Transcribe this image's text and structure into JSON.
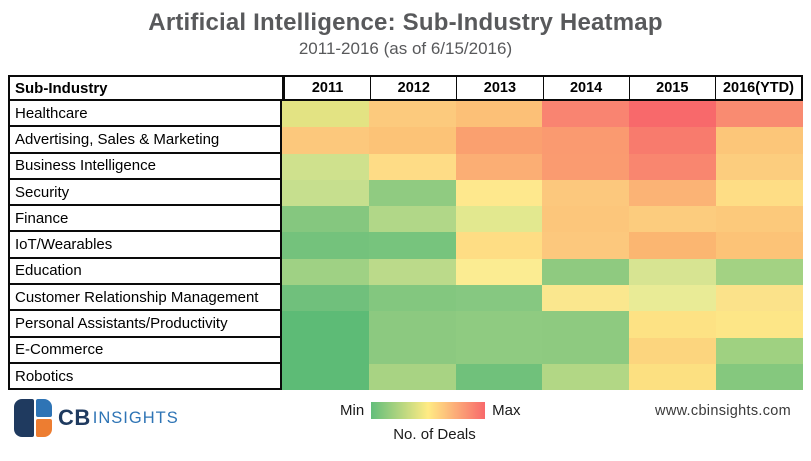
{
  "header": {
    "title": "Artificial Intelligence: Sub-Industry Heatmap",
    "subtitle": "2011-2016 (as of 6/15/2016)"
  },
  "chart_data": {
    "type": "heatmap",
    "title": "Artificial Intelligence: Sub-Industry Heatmap",
    "subtitle": "2011-2016 (as of 6/15/2016)",
    "corner_label": "Sub-Industry",
    "columns": [
      "2011",
      "2012",
      "2013",
      "2014",
      "2015",
      "2016(YTD)"
    ],
    "rows": [
      "Healthcare",
      "Advertising, Sales & Marketing",
      "Business Intelligence",
      "Security",
      "Finance",
      "IoT/Wearables",
      "Education",
      "Customer Relationship Management",
      "Personal Assistants/Productivity",
      "E-Commerce",
      "Robotics"
    ],
    "colors": [
      [
        "#E3E383",
        "#FCCA7D",
        "#FCC077",
        "#F98471",
        "#F8696B",
        "#F98B71"
      ],
      [
        "#FCC87C",
        "#FCC377",
        "#FAA06F",
        "#FA9A70",
        "#F87B6D",
        "#FCC679"
      ],
      [
        "#CFE18D",
        "#FEDC86",
        "#FBAE74",
        "#FA9B70",
        "#F9866F",
        "#FCCD7E"
      ],
      [
        "#C6DF8E",
        "#90CB81",
        "#FEE88D",
        "#FCC87D",
        "#FBB375",
        "#FEDD85"
      ],
      [
        "#85C77F",
        "#B1D788",
        "#E2E88F",
        "#FCC67B",
        "#FCCC7E",
        "#FCC97B"
      ],
      [
        "#74C27C",
        "#77C47D",
        "#FEDD84",
        "#FCC87D",
        "#FBB671",
        "#FCC377"
      ],
      [
        "#9FD184",
        "#BBDA8A",
        "#FBEC92",
        "#8FCA80",
        "#D7E492",
        "#A3D283"
      ],
      [
        "#70C07C",
        "#83C77F",
        "#86C881",
        "#FAE78E",
        "#E9EB96",
        "#FBE28A"
      ],
      [
        "#5DBB76",
        "#8CC980",
        "#8FCB81",
        "#8ECA80",
        "#FDE284",
        "#FDE687"
      ],
      [
        "#5DBB76",
        "#8CC980",
        "#8FCB81",
        "#8ECA80",
        "#FCD57E",
        "#9FD181"
      ],
      [
        "#5DBB76",
        "#A8D383",
        "#70C17B",
        "#B2D785",
        "#FCE081",
        "#85C87E"
      ]
    ],
    "values_normalized_0min_1max": [
      [
        0.4,
        0.63,
        0.67,
        0.89,
        1.0,
        0.87
      ],
      [
        0.63,
        0.68,
        0.79,
        0.81,
        0.95,
        0.64
      ],
      [
        0.35,
        0.56,
        0.73,
        0.81,
        0.88,
        0.61
      ],
      [
        0.32,
        0.14,
        0.53,
        0.63,
        0.72,
        0.56
      ],
      [
        0.11,
        0.25,
        0.41,
        0.65,
        0.62,
        0.64
      ],
      [
        0.05,
        0.06,
        0.56,
        0.63,
        0.7,
        0.67
      ],
      [
        0.19,
        0.28,
        0.5,
        0.14,
        0.37,
        0.21
      ],
      [
        0.04,
        0.1,
        0.11,
        0.51,
        0.43,
        0.53
      ],
      [
        0.0,
        0.13,
        0.14,
        0.13,
        0.52,
        0.53
      ],
      [
        0.0,
        0.13,
        0.14,
        0.13,
        0.58,
        0.2
      ],
      [
        0.0,
        0.22,
        0.04,
        0.26,
        0.54,
        0.11
      ]
    ],
    "scale": {
      "min_label": "Min",
      "max_label": "Max",
      "caption": "No. of Deals",
      "min_color": "#63BE7B",
      "mid_color": "#FFEB84",
      "max_color": "#F8696B"
    },
    "legend_position": "bottom-center",
    "grid": false
  },
  "footer": {
    "logo": {
      "cb_text": "CB",
      "insights_text": "INSIGHTS",
      "navy": "#1F3A5F",
      "blue": "#2E74B5",
      "orange": "#ED7D31"
    },
    "website": "www.cbinsights.com"
  }
}
